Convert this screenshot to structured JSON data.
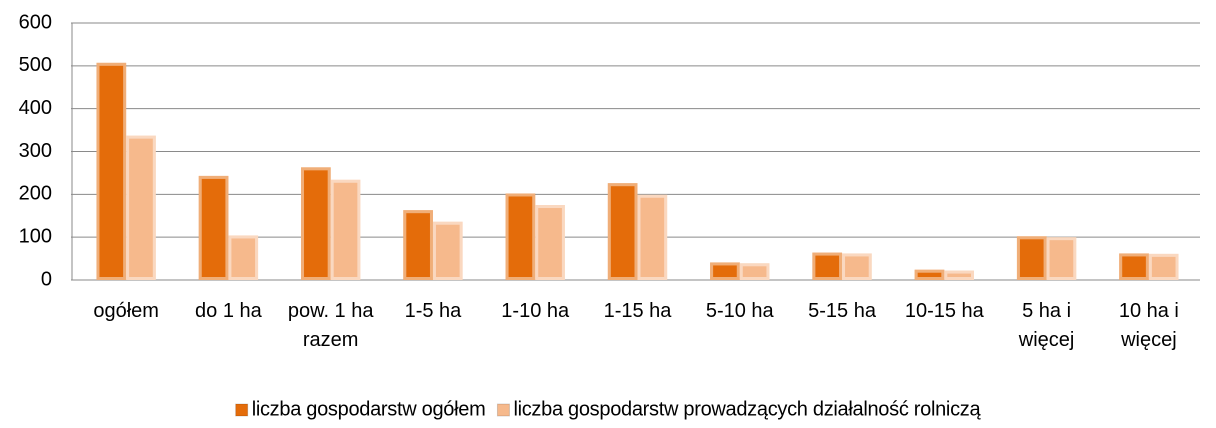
{
  "chart_data": {
    "type": "bar",
    "categories": [
      "ogółem",
      "do 1 ha",
      "pow. 1 ha razem",
      "1-5 ha",
      "1-10 ha",
      "1-15 ha",
      "5-10 ha",
      "5-15 ha",
      "10-15 ha",
      "5 ha i więcej",
      "10 ha i więcej"
    ],
    "series": [
      {
        "name": "liczba gospodarstw ogółem",
        "color": "#e46c0a",
        "values": [
          507,
          243,
          263,
          163,
          202,
          226,
          41,
          64,
          24,
          102,
          62
        ]
      },
      {
        "name": "liczba gospodarstw prowadzących działalność rolniczą",
        "color": "#f6b98c",
        "values": [
          337,
          104,
          234,
          136,
          175,
          199,
          39,
          62,
          22,
          100,
          61
        ]
      }
    ],
    "ylim": [
      0,
      600
    ],
    "yticks": [
      0,
      100,
      200,
      300,
      400,
      500,
      600
    ],
    "grid": true,
    "legend": "bottom"
  }
}
